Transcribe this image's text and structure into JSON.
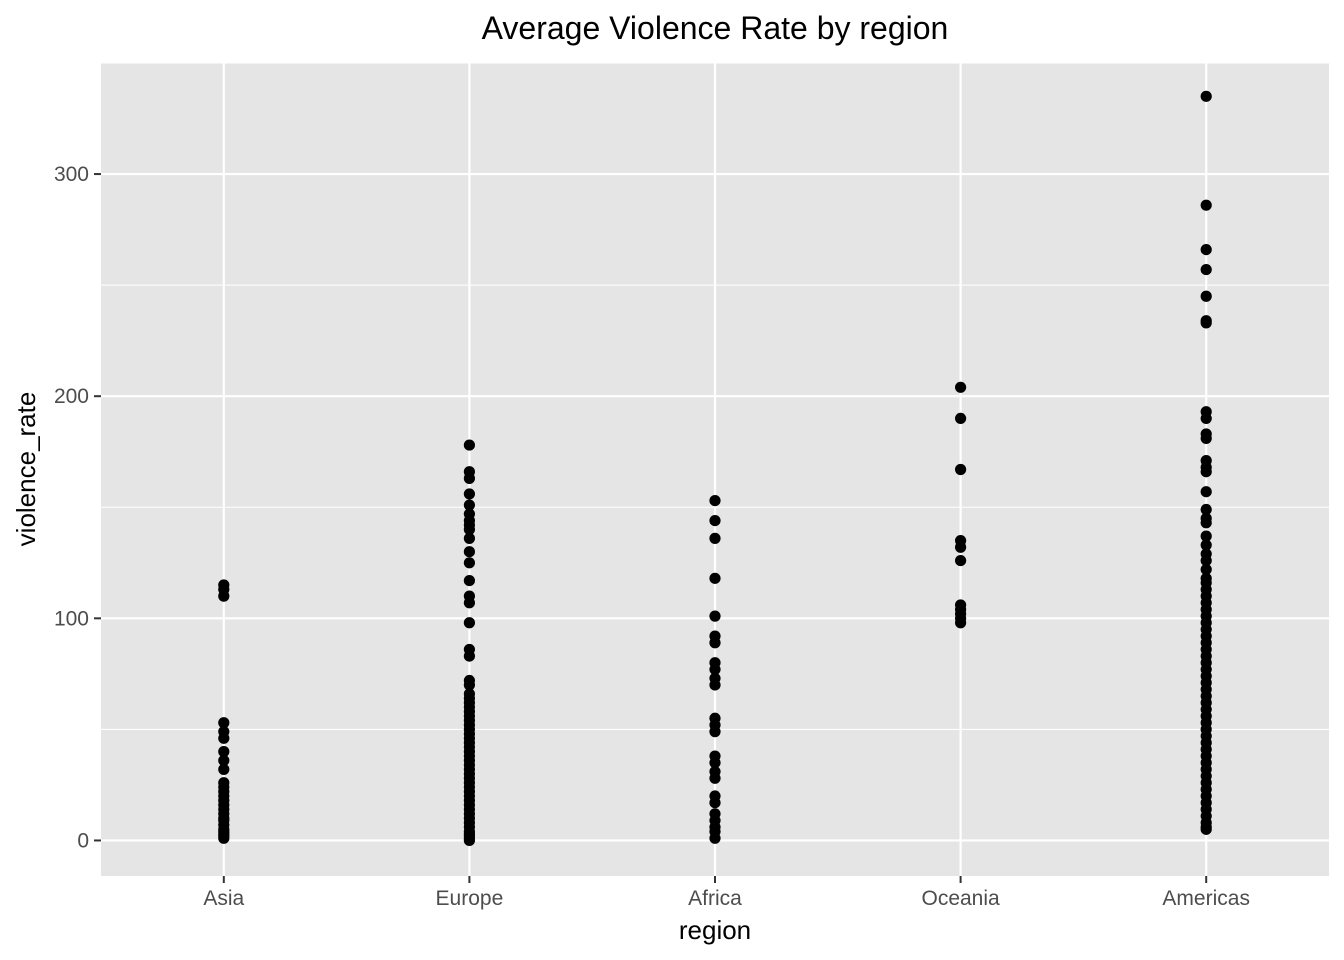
{
  "chart_data": {
    "type": "scatter",
    "title": "Average Violence Rate by region",
    "xlabel": "region",
    "ylabel": "violence_rate",
    "categories": [
      "Asia",
      "Europe",
      "Africa",
      "Oceania",
      "Americas"
    ],
    "ylim": [
      -16,
      350
    ],
    "yticks": [
      0,
      100,
      200,
      300
    ],
    "grid": true,
    "legend": "none",
    "colors": {
      "panel": "#e5e5e5",
      "grid": "#ffffff",
      "point": "#000000",
      "tick": "#333333",
      "tick_label": "#4d4d4d"
    },
    "points": {
      "Asia": [
        115,
        113,
        110,
        53,
        49,
        46,
        40,
        36,
        32,
        26,
        24,
        22,
        20,
        18,
        16,
        14,
        12,
        10,
        9,
        7,
        5,
        4,
        3,
        2,
        1
      ],
      "Europe": [
        178,
        166,
        163,
        156,
        151,
        147,
        144,
        142,
        140,
        136,
        130,
        125,
        117,
        110,
        107,
        98,
        86,
        83,
        72,
        70,
        66,
        64,
        62,
        60,
        58,
        56,
        54,
        52,
        50,
        48,
        46,
        44,
        42,
        40,
        38,
        36,
        34,
        32,
        30,
        28,
        26,
        24,
        22,
        20,
        18,
        16,
        14,
        12,
        10,
        8,
        6,
        4,
        3,
        2,
        1,
        0
      ],
      "Africa": [
        153,
        144,
        136,
        118,
        101,
        92,
        89,
        80,
        77,
        73,
        70,
        55,
        52,
        49,
        38,
        35,
        31,
        28,
        20,
        17,
        12,
        9,
        6,
        4,
        1
      ],
      "Oceania": [
        204,
        190,
        167,
        135,
        132,
        126,
        106,
        104,
        102,
        100,
        98
      ],
      "Americas": [
        335,
        286,
        266,
        257,
        245,
        234,
        233,
        193,
        190,
        183,
        181,
        171,
        168,
        166,
        157,
        149,
        145,
        143,
        137,
        133,
        129,
        126,
        122,
        118,
        116,
        113,
        110,
        107,
        104,
        101,
        98,
        95,
        92,
        89,
        86,
        83,
        80,
        77,
        74,
        71,
        68,
        65,
        62,
        59,
        56,
        53,
        50,
        47,
        44,
        41,
        38,
        35,
        32,
        29,
        26,
        23,
        20,
        17,
        14,
        11,
        8,
        6,
        5
      ]
    }
  }
}
